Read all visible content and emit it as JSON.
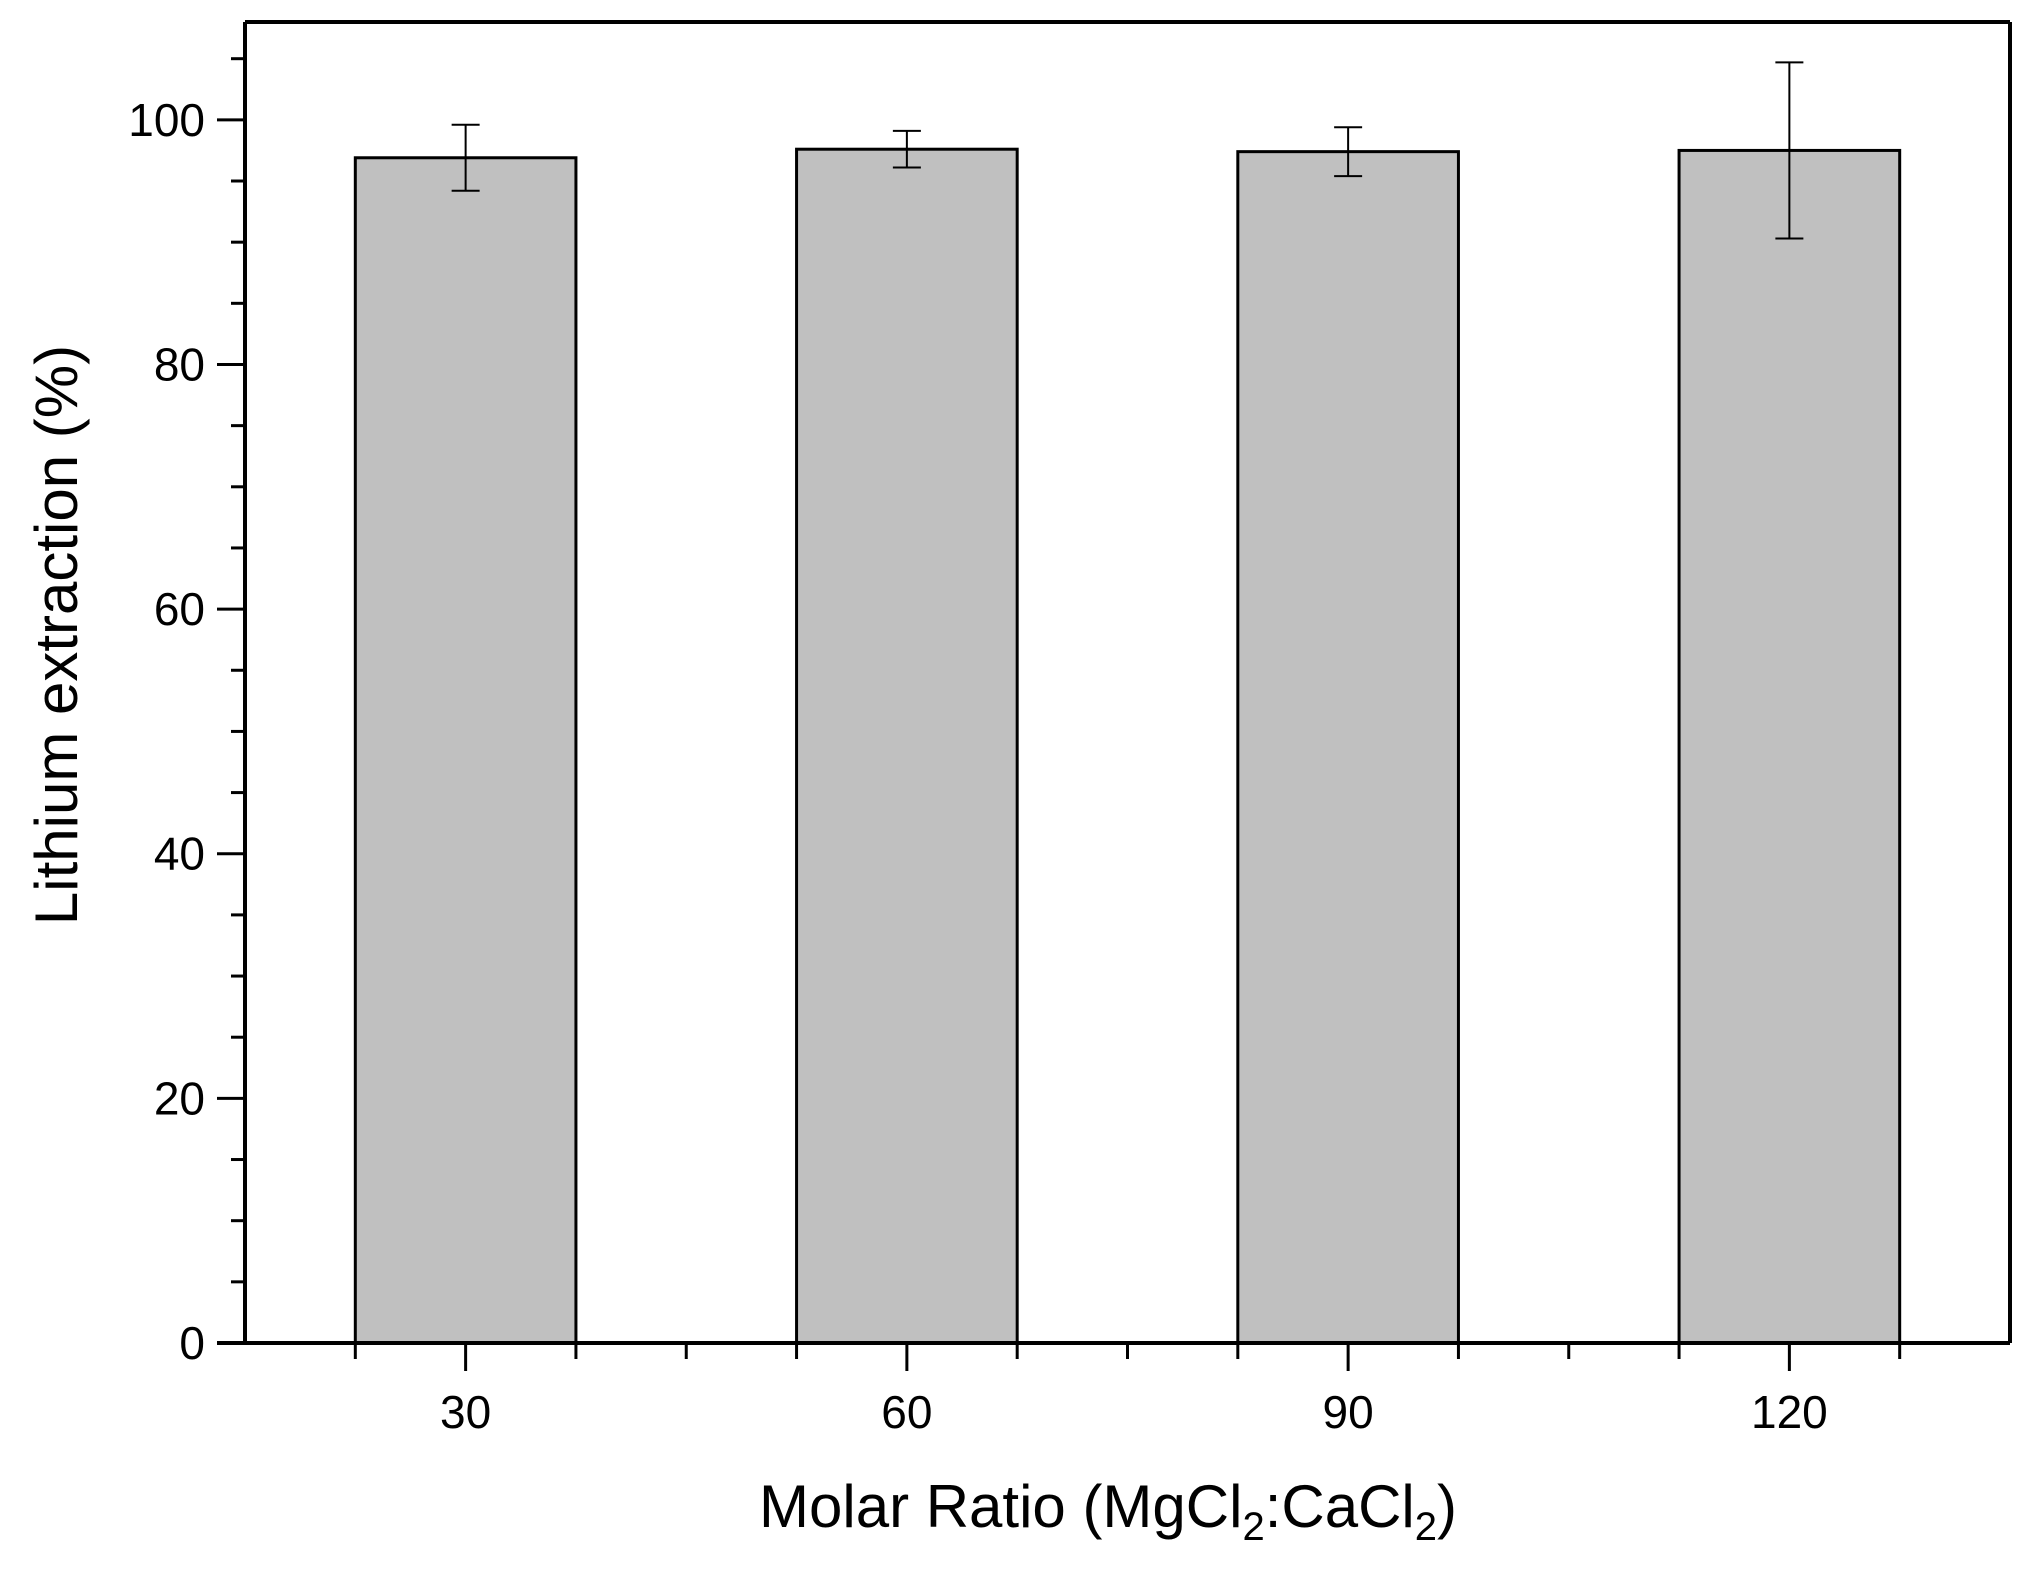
{
  "chart_data": {
    "type": "bar",
    "title": "",
    "xlabel": {
      "main": "Molar Ratio (MgCl",
      "sub1": "2",
      "mid": ":CaCl",
      "sub2": "2",
      "end": ")"
    },
    "ylabel": "Lithium extraction (%)",
    "categories": [
      "30",
      "60",
      "90",
      "120"
    ],
    "x": [
      30,
      60,
      90,
      120
    ],
    "values": [
      96.9,
      97.6,
      97.4,
      97.5
    ],
    "errors": [
      2.7,
      1.5,
      2.0,
      7.2
    ],
    "ylim": [
      0,
      108
    ],
    "xlim": [
      15,
      135
    ],
    "yticks": [
      0,
      20,
      40,
      60,
      80,
      100
    ],
    "yticklabels": [
      "0",
      "20",
      "40",
      "60",
      "80",
      "100"
    ],
    "bar_width": 15,
    "grid": false,
    "legend": "none",
    "colors": {
      "bar_fill": "#c0c0c0",
      "bar_stroke": "#000000",
      "axis": "#000000"
    }
  }
}
